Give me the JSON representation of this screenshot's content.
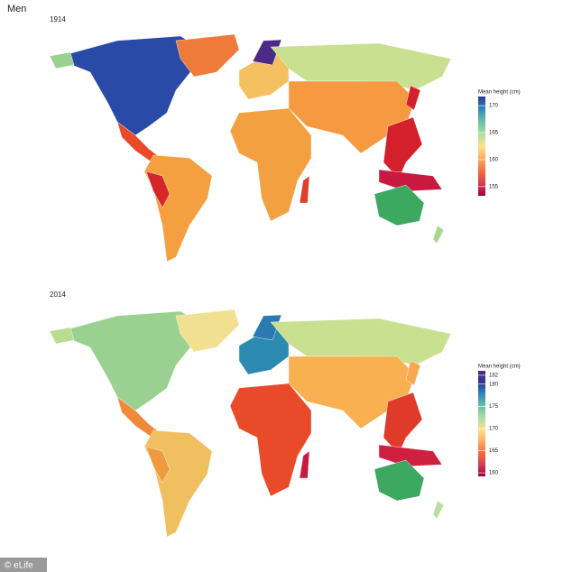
{
  "title": "Men",
  "panels": [
    {
      "year": "1914",
      "legend_title": "Mean height (cm)",
      "clim": [
        153.3,
        171.7
      ],
      "ticks": [
        155,
        160,
        165,
        170
      ],
      "colorscale": [
        "#9e0142",
        "#d53e4f",
        "#f46d43",
        "#fdae61",
        "#fee08b",
        "#abdda4",
        "#66c2a5",
        "#3288bd",
        "#2c3a8c"
      ]
    },
    {
      "year": "2014",
      "legend_title": "Mean height (cm)",
      "clim": [
        159.2,
        183
      ],
      "ticks": [
        160,
        165,
        170,
        175,
        180,
        182
      ],
      "colorscale": [
        "#9e0142",
        "#d53e4f",
        "#f46d43",
        "#fdae61",
        "#fee08b",
        "#abdda4",
        "#66c2a5",
        "#3288bd",
        "#2c3a8c",
        "#4b2a8a"
      ]
    }
  ],
  "footer": "© eLife"
}
